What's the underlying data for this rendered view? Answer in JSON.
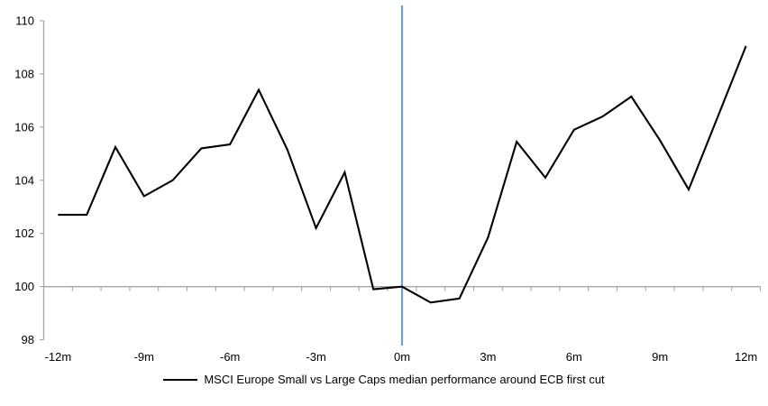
{
  "chart_data": {
    "type": "line",
    "title": "",
    "legend": "MSCI Europe Small vs Large Caps median performance around ECB first cut",
    "x": [
      -12,
      -11,
      -10,
      -9,
      -8,
      -7,
      -6,
      -5,
      -4,
      -3,
      -2,
      -1,
      0,
      1,
      2,
      3,
      4,
      5,
      6,
      7,
      8,
      9,
      10,
      11,
      12
    ],
    "values": [
      102.7,
      102.7,
      105.25,
      103.4,
      104.0,
      105.2,
      105.35,
      107.4,
      105.15,
      102.2,
      104.3,
      99.9,
      100.0,
      99.4,
      99.55,
      101.85,
      105.45,
      104.1,
      105.9,
      106.4,
      107.15,
      105.5,
      103.65,
      106.35,
      109.05
    ],
    "xlim": [
      -12.5,
      12.5
    ],
    "ylim": [
      98,
      110
    ],
    "y_ticks": [
      98,
      100,
      102,
      104,
      106,
      108,
      110
    ],
    "y_tick_labels": [
      "98",
      "100",
      "102",
      "104",
      "106",
      "108",
      "110"
    ],
    "x_tick_label_positions": [
      -12,
      -9,
      -6,
      -3,
      0,
      3,
      6,
      9,
      12
    ],
    "x_tick_labels": [
      "-12m",
      "-9m",
      "-6m",
      "-3m",
      "0m",
      "3m",
      "6m",
      "9m",
      "12m"
    ],
    "minor_tick_step_months": 1,
    "baseline_value": 100,
    "event_line_x": 0,
    "legend_position": "bottom-center",
    "grid": "off",
    "colors": {
      "series": "#000000",
      "event_line": "#6FA0CC",
      "axis": "#A6A6A6",
      "text": "#000000",
      "background": "#FFFFFF"
    }
  }
}
